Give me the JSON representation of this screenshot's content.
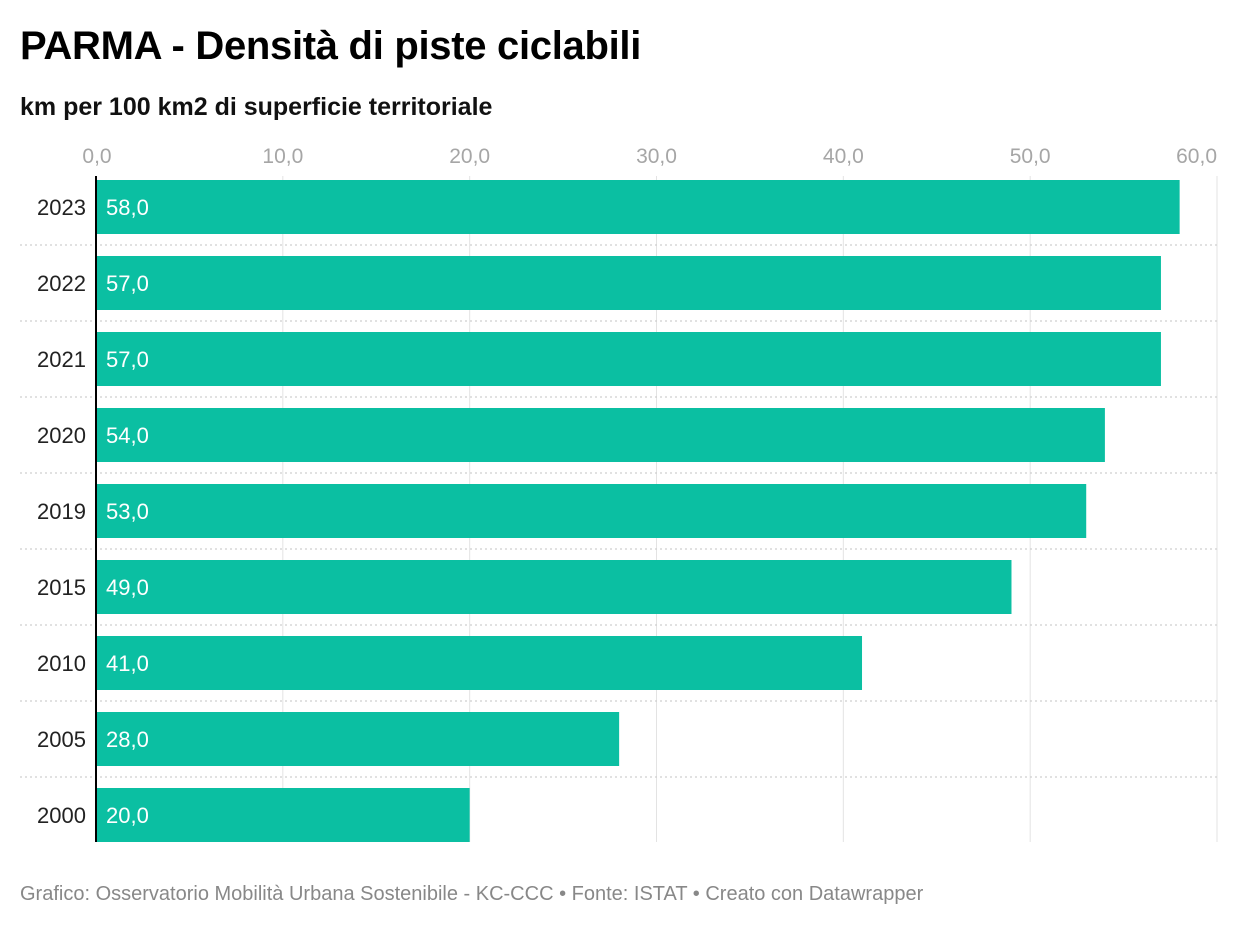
{
  "chart_data": {
    "type": "bar",
    "orientation": "horizontal",
    "title": "PARMA - Densità di piste ciclabili",
    "subtitle": "km per 100 km2 di superficie territoriale",
    "categories": [
      "2023",
      "2022",
      "2021",
      "2020",
      "2019",
      "2015",
      "2010",
      "2005",
      "2000"
    ],
    "values": [
      58.0,
      57.0,
      57.0,
      54.0,
      53.0,
      49.0,
      41.0,
      28.0,
      20.0
    ],
    "value_labels": [
      "58,0",
      "57,0",
      "57,0",
      "54,0",
      "53,0",
      "49,0",
      "41,0",
      "28,0",
      "20,0"
    ],
    "x_ticks": [
      0,
      10,
      20,
      30,
      40,
      50,
      60
    ],
    "x_tick_labels": [
      "0,0",
      "10,0",
      "20,0",
      "30,0",
      "40,0",
      "50,0",
      "60,0"
    ],
    "xlim": [
      0,
      60
    ],
    "xaxis_position": "top",
    "grid": true,
    "bar_color": "#0bbfa2",
    "xlabel": "",
    "ylabel": ""
  },
  "footer": {
    "text": "Grafico: Osservatorio Mobilità Urbana Sostenibile - KC-CCC • Fonte: ISTAT • Creato con Datawrapper"
  }
}
